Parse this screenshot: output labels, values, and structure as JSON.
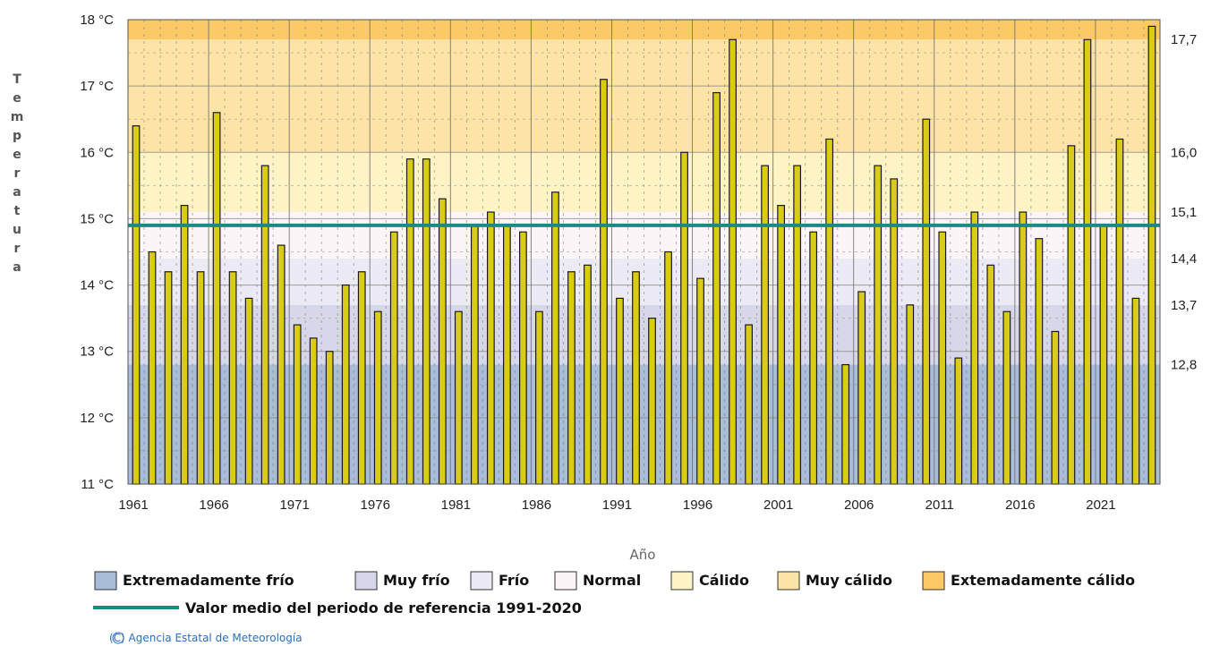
{
  "chart_data": {
    "type": "bar",
    "xlabel": "Año",
    "ylabel": "Temperatura",
    "ylim": [
      11,
      18
    ],
    "y_ticks": [
      "11 °C",
      "12 °C",
      "13 °C",
      "14 °C",
      "15 °C",
      "16 °C",
      "17 °C",
      "18 °C"
    ],
    "x_tick_labels": [
      "1961",
      "1966",
      "1971",
      "1976",
      "1981",
      "1986",
      "1991",
      "1996",
      "2001",
      "2006",
      "2011",
      "2016",
      "2021"
    ],
    "right_axis_labels": [
      "17,7",
      "16,0",
      "15,1",
      "14,4",
      "13,7",
      "12,8"
    ],
    "categories": [
      1961,
      1962,
      1963,
      1964,
      1965,
      1966,
      1967,
      1968,
      1969,
      1970,
      1971,
      1972,
      1973,
      1974,
      1975,
      1976,
      1977,
      1978,
      1979,
      1980,
      1981,
      1982,
      1983,
      1984,
      1985,
      1986,
      1987,
      1988,
      1989,
      1990,
      1991,
      1992,
      1993,
      1994,
      1995,
      1996,
      1997,
      1998,
      1999,
      2000,
      2001,
      2002,
      2003,
      2004,
      2005,
      2006,
      2007,
      2008,
      2009,
      2010,
      2011,
      2012,
      2013,
      2014,
      2015,
      2016,
      2017,
      2018,
      2019,
      2020,
      2021,
      2022,
      2023,
      2024
    ],
    "values": [
      16.4,
      14.5,
      14.2,
      15.2,
      14.2,
      16.6,
      14.2,
      13.8,
      15.8,
      14.6,
      13.4,
      13.2,
      13.0,
      14.0,
      14.2,
      13.6,
      14.8,
      15.9,
      15.9,
      15.3,
      13.6,
      14.9,
      15.1,
      14.9,
      14.8,
      13.6,
      15.4,
      14.2,
      14.3,
      17.1,
      13.8,
      14.2,
      13.5,
      14.5,
      16.0,
      14.1,
      16.9,
      17.7,
      13.4,
      15.8,
      15.2,
      15.8,
      14.8,
      16.2,
      12.8,
      13.9,
      15.8,
      15.6,
      13.7,
      16.5,
      14.8,
      12.9,
      15.1,
      14.3,
      13.6,
      15.1,
      14.7,
      13.3,
      16.1,
      17.7,
      14.9,
      16.2,
      13.8,
      17.9
    ],
    "reference_mean": 14.9,
    "bands": [
      {
        "label": "Extremadamente frío",
        "from": 11.0,
        "to": 12.8,
        "color": "#a9bcd8"
      },
      {
        "label": "Muy frío",
        "from": 12.8,
        "to": 13.7,
        "color": "#d7d7ea"
      },
      {
        "label": "Frío",
        "from": 13.7,
        "to": 14.4,
        "color": "#ecebf5"
      },
      {
        "label": "Normal",
        "from": 14.4,
        "to": 15.1,
        "color": "#fcf5f7"
      },
      {
        "label": "Cálido",
        "from": 15.1,
        "to": 16.0,
        "color": "#fdf3c4"
      },
      {
        "label": "Muy cálido",
        "from": 16.0,
        "to": 17.7,
        "color": "#fde3a5"
      },
      {
        "label": "Extemadamente cálido",
        "from": 17.7,
        "to": 18.0,
        "color": "#fbc965"
      }
    ],
    "bar_color": "#d8cc14",
    "mean_line_color": "#1a8a84",
    "grid": true
  },
  "legend": {
    "mean_label": "Valor medio del periodo de referencia 1991-2020"
  },
  "credit": "(C) Agencia Estatal de Meteorología"
}
